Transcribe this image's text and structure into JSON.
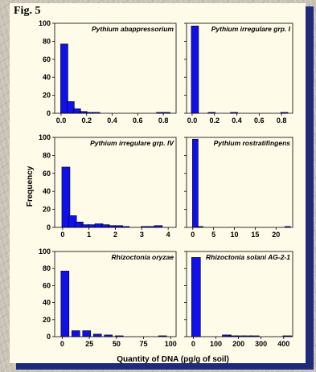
{
  "figure_label": "Fig. 5",
  "ylabel": "Frequency",
  "xlabel": "Quantity of DNA (pg/g of soil)",
  "colors": {
    "bar": "#1010e8",
    "background": "#fffbe9",
    "shadow": "#1f2a7a"
  },
  "chart_data": [
    {
      "type": "bar",
      "title": "Pythium abappressorium",
      "x": [
        0.025,
        0.075,
        0.125,
        0.175,
        0.225,
        0.275,
        0.775,
        0.825
      ],
      "values": [
        77,
        13,
        5,
        2,
        1,
        1,
        1,
        1
      ],
      "xlim": [
        -0.05,
        0.9
      ],
      "xticks": [
        "0.0",
        "0.2",
        "0.4",
        "0.6",
        "0.8"
      ],
      "xtick_values": [
        0,
        0.2,
        0.4,
        0.6,
        0.8
      ],
      "ylim": [
        0,
        100
      ],
      "yticks": [
        "0",
        "20",
        "40",
        "60",
        "80",
        "100"
      ],
      "yticks_shown": true,
      "xticks_shown": true
    },
    {
      "type": "bar",
      "title": "Pythium irregulare grp. I",
      "x": [
        0.025,
        0.175,
        0.375,
        0.825
      ],
      "values": [
        97,
        1,
        1,
        1
      ],
      "xlim": [
        -0.05,
        0.9
      ],
      "xticks": [
        "0.0",
        "0.2",
        "0.4",
        "0.6",
        "0.8"
      ],
      "xtick_values": [
        0,
        0.2,
        0.4,
        0.6,
        0.8
      ],
      "ylim": [
        0,
        100
      ],
      "yticks": [],
      "yticks_shown": false,
      "xticks_shown": true
    },
    {
      "type": "bar",
      "title": "Pythium irregulare grp. IV",
      "x": [
        0.125,
        0.375,
        0.625,
        0.875,
        1.125,
        1.375,
        1.625,
        1.875,
        2.125,
        2.375,
        3.125,
        3.375,
        3.625
      ],
      "values": [
        67,
        13,
        6,
        3,
        3,
        4,
        3,
        2,
        2,
        1,
        1,
        1,
        2
      ],
      "xlim": [
        -0.3,
        4.3
      ],
      "xticks": [
        "0",
        "1",
        "2",
        "3",
        "4"
      ],
      "xtick_values": [
        0,
        1,
        2,
        3,
        4
      ],
      "ylim": [
        0,
        100
      ],
      "yticks": [
        "0",
        "20",
        "40",
        "60",
        "80",
        "100"
      ],
      "yticks_shown": true,
      "xticks_shown": true
    },
    {
      "type": "bar",
      "title": "Pythium rostratifingens",
      "x": [
        0.6,
        1.8,
        22.8
      ],
      "values": [
        98,
        1,
        1
      ],
      "xlim": [
        -1.5,
        24
      ],
      "xticks": [
        "0",
        "5",
        "10",
        "15",
        "20"
      ],
      "xtick_values": [
        0,
        5,
        10,
        15,
        20
      ],
      "ylim": [
        0,
        100
      ],
      "yticks": [],
      "yticks_shown": false,
      "xticks_shown": true
    },
    {
      "type": "bar",
      "title": "Rhizoctonia oryzae",
      "x": [
        2.5,
        12.5,
        22.5,
        32.5,
        42.5,
        52.5,
        92.5
      ],
      "values": [
        77,
        7,
        7,
        3,
        2,
        1,
        1
      ],
      "xlim": [
        -7,
        105
      ],
      "xticks": [
        "0",
        "25",
        "50",
        "75",
        "100"
      ],
      "xtick_values": [
        0,
        25,
        50,
        75,
        100
      ],
      "ylim": [
        0,
        100
      ],
      "yticks": [
        "0",
        "20",
        "40",
        "60",
        "80",
        "100"
      ],
      "yticks_shown": true,
      "xticks_shown": true
    },
    {
      "type": "bar",
      "title": "Rhizoctonia solani AG-2-1",
      "x": [
        12,
        148,
        176,
        208,
        240,
        272,
        416
      ],
      "values": [
        93,
        2,
        1,
        1,
        1,
        1,
        1
      ],
      "xlim": [
        -30,
        440
      ],
      "xticks": [
        "0",
        "100",
        "200",
        "300",
        "400"
      ],
      "xtick_values": [
        0,
        100,
        200,
        300,
        400
      ],
      "ylim": [
        0,
        100
      ],
      "yticks": [],
      "yticks_shown": false,
      "xticks_shown": true
    }
  ]
}
